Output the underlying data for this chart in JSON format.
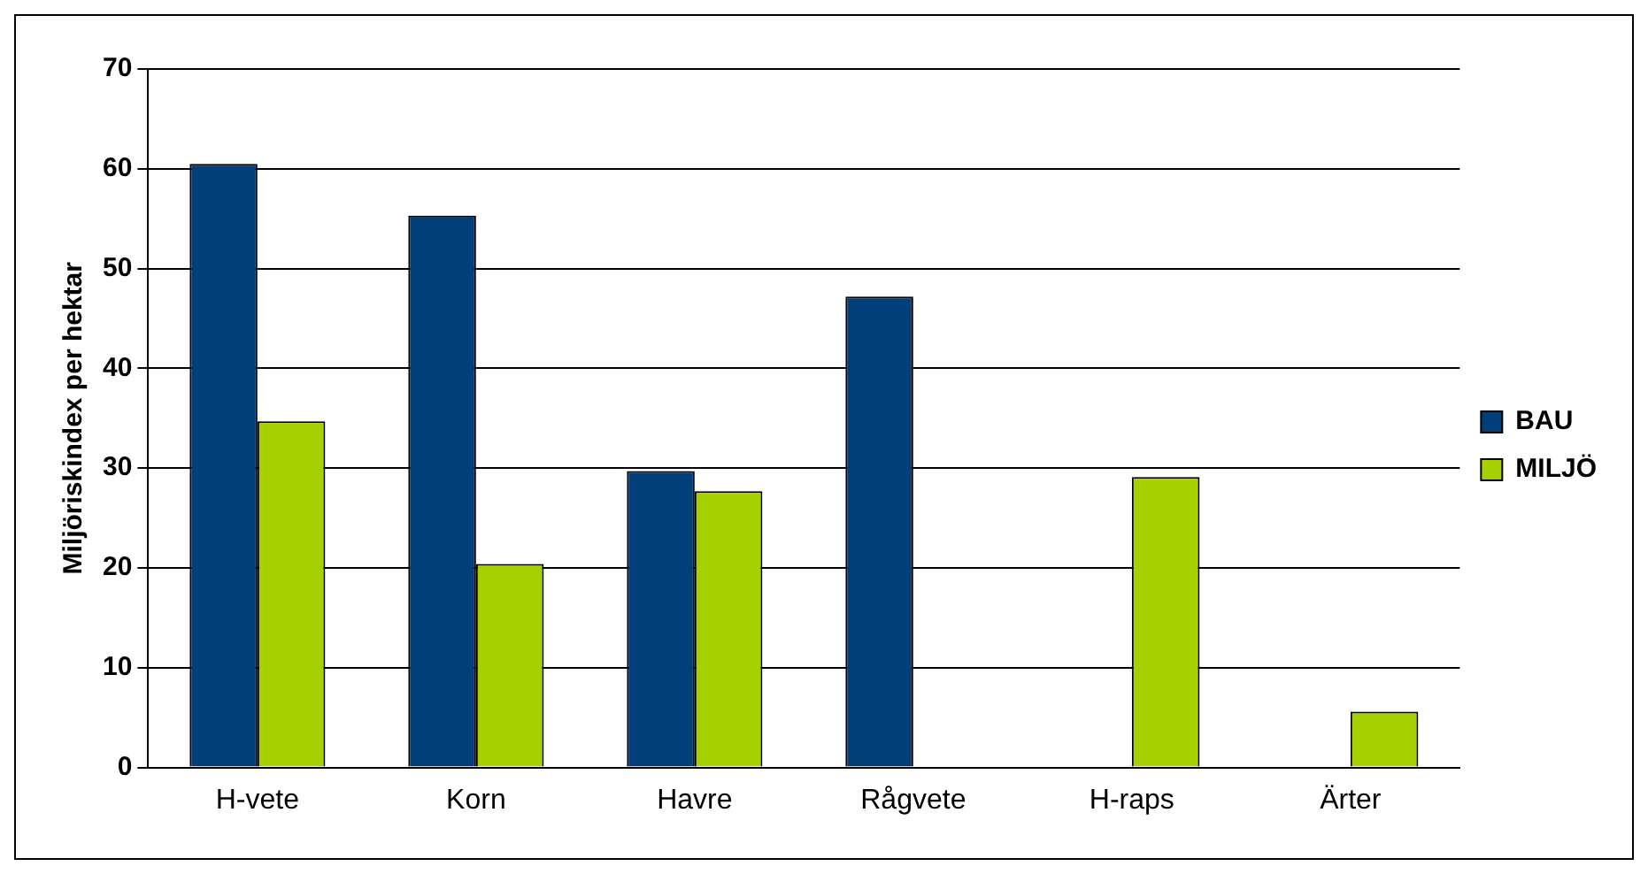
{
  "chart_data": {
    "type": "bar",
    "ylabel": "Miljöriskindex per hektar",
    "categories": [
      "H-vete",
      "Korn",
      "Havre",
      "Rågvete",
      "H-raps",
      "Ärter"
    ],
    "series": [
      {
        "name": "BAU",
        "color": "#003f7a",
        "values": [
          60.5,
          55.3,
          29.7,
          47.2,
          null,
          null
        ]
      },
      {
        "name": "MILJÖ",
        "color": "#a6d000",
        "values": [
          34.7,
          20.4,
          27.7,
          null,
          29.1,
          5.6
        ]
      }
    ],
    "ylim": [
      0,
      70
    ],
    "yticks": [
      0,
      10,
      20,
      30,
      40,
      50,
      60,
      70
    ],
    "grid": "y",
    "legend": "right"
  }
}
